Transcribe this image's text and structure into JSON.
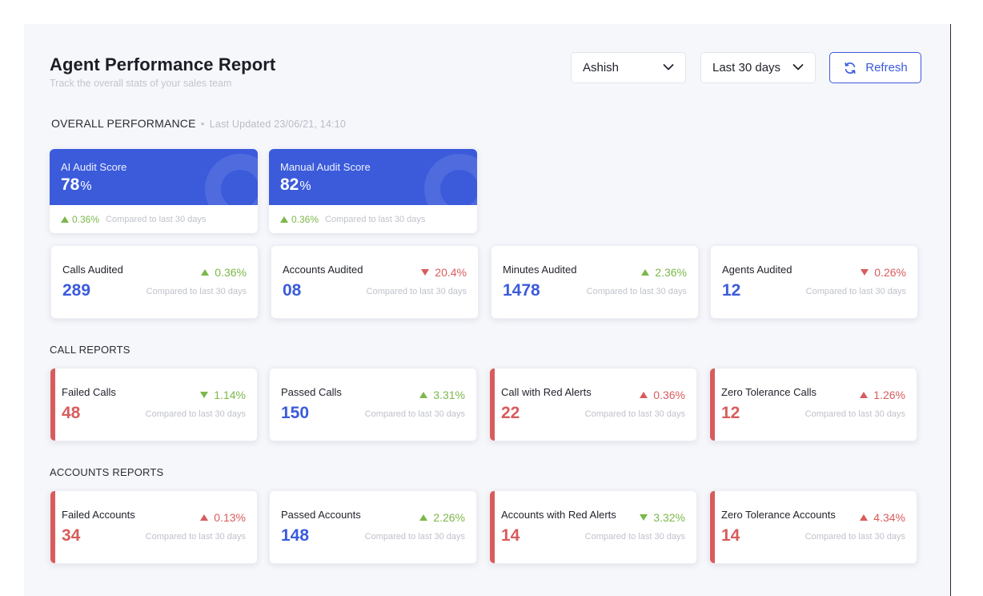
{
  "header": {
    "title": "Agent Performance Report",
    "subtitle": "Track the overall stats of your sales team",
    "agent_select": "Ashish",
    "range_select": "Last 30 days",
    "refresh_label": "Refresh"
  },
  "overall": {
    "label": "OVERALL PERFORMANCE",
    "updated": "Last Updated 23/06/21, 14:10",
    "scores": [
      {
        "name": "AI Audit Score",
        "value": "78",
        "unit": "%",
        "change": "0.36%",
        "compare": "Compared to last 30 days"
      },
      {
        "name": "Manual Audit Score",
        "value": "82",
        "unit": "%",
        "change": "0.36%",
        "compare": "Compared to last 30 days"
      }
    ],
    "stats": [
      {
        "name": "Calls Audited",
        "value": "289",
        "change": "0.36%",
        "direction": "up",
        "compare": "Compared to last 30 days"
      },
      {
        "name": "Accounts Audited",
        "value": "08",
        "change": "20.4%",
        "direction": "down",
        "compare": "Compared to last 30 days"
      },
      {
        "name": "Minutes Audited",
        "value": "1478",
        "change": "2.36%",
        "direction": "up",
        "compare": "Compared to last 30 days"
      },
      {
        "name": "Agents Audited",
        "value": "12",
        "change": "0.26%",
        "direction": "down",
        "compare": "Compared to last 30 days"
      }
    ]
  },
  "call_reports": {
    "label": "CALL REPORTS",
    "cards": [
      {
        "name": "Failed Calls",
        "value": "48",
        "change": "1.14%",
        "direction": "down",
        "compare": "Compared to last 30 days"
      },
      {
        "name": "Passed Calls",
        "value": "150",
        "change": "3.31%",
        "direction": "up",
        "compare": "Compared to last 30 days"
      },
      {
        "name": "Call with Red Alerts",
        "value": "22",
        "change": "0.36%",
        "direction": "up",
        "compare": "Compared to last 30 days"
      },
      {
        "name": "Zero Tolerance Calls",
        "value": "12",
        "change": "1.26%",
        "direction": "up",
        "compare": "Compared to last 30 days"
      }
    ]
  },
  "accounts_reports": {
    "label": "ACCOUNTS REPORTS",
    "cards": [
      {
        "name": "Failed Accounts",
        "value": "34",
        "change": "0.13%",
        "direction": "up",
        "compare": "Compared to last 30 days"
      },
      {
        "name": "Passed Accounts",
        "value": "148",
        "change": "2.26%",
        "direction": "up",
        "compare": "Compared to last 30 days"
      },
      {
        "name": "Accounts with Red Alerts",
        "value": "14",
        "change": "3.32%",
        "direction": "down",
        "compare": "Compared to last 30 days"
      },
      {
        "name": "Zero Tolerance Accounts",
        "value": "14",
        "change": "4.34%",
        "direction": "up",
        "compare": "Compared to last 30 days"
      }
    ]
  },
  "colors": {
    "primary": "#3b5bdb",
    "positive": "#7bb84a",
    "negative": "#d85c5c",
    "background": "#f6f7fb"
  }
}
